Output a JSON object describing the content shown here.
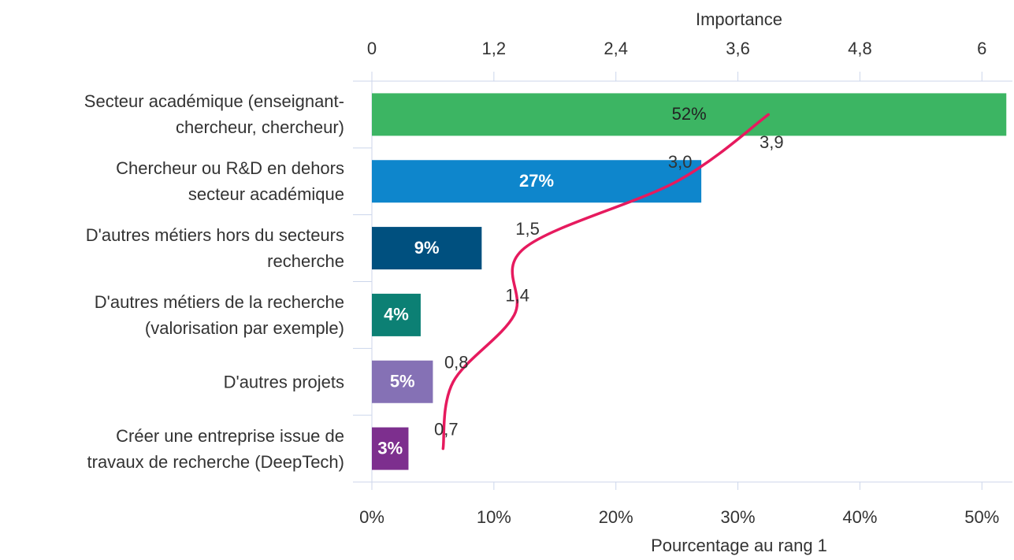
{
  "chart_data": {
    "type": "bar",
    "orientation": "horizontal",
    "categories": [
      "Secteur académique (enseignant-\nchercheur, chercheur)",
      "Chercheur ou R&D en dehors\nsecteur académique",
      "D'autres métiers hors du secteurs\nrecherche",
      "D'autres métiers de la recherche\n(valorisation par exemple)",
      "D'autres projets",
      "Créer une entreprise issue de\ntravaux de recherche (DeepTech)"
    ],
    "series": [
      {
        "name": "Pourcentage au rang 1",
        "type": "bar",
        "colors": [
          "#3cb563",
          "#0e86cc",
          "#00507f",
          "#0c8074",
          "#8571b5",
          "#7d2f8e"
        ],
        "values": [
          52,
          27,
          9,
          4,
          5,
          3
        ],
        "value_labels": [
          "52%",
          "27%",
          "9%",
          "4%",
          "5%",
          "3%"
        ]
      },
      {
        "name": "Importance",
        "type": "line",
        "axis": "x2",
        "color": "#e61a5e",
        "values": [
          3.9,
          3.0,
          1.5,
          1.4,
          0.8,
          0.7
        ],
        "value_labels": [
          "3,9",
          "3,0",
          "1,5",
          "1,4",
          "0,8",
          "0,7"
        ]
      }
    ],
    "xlabel": "Pourcentage au rang 1",
    "x2label": "Importance",
    "xlim": [
      0,
      52.5
    ],
    "xticks": [
      {
        "value": 0,
        "label": "0%"
      },
      {
        "value": 10,
        "label": "10%"
      },
      {
        "value": 20,
        "label": "20%"
      },
      {
        "value": 30,
        "label": "30%"
      },
      {
        "value": 40,
        "label": "40%"
      },
      {
        "value": 50,
        "label": "50%"
      }
    ],
    "x2lim": [
      0,
      6.3
    ],
    "x2ticks": [
      0,
      {
        "value": 1.2,
        "label": "1,2"
      },
      {
        "value": 2.4,
        "label": "2,4"
      },
      {
        "value": 3.6,
        "label": "3,6"
      },
      {
        "value": 4.8,
        "label": "4,8"
      },
      6
    ]
  }
}
